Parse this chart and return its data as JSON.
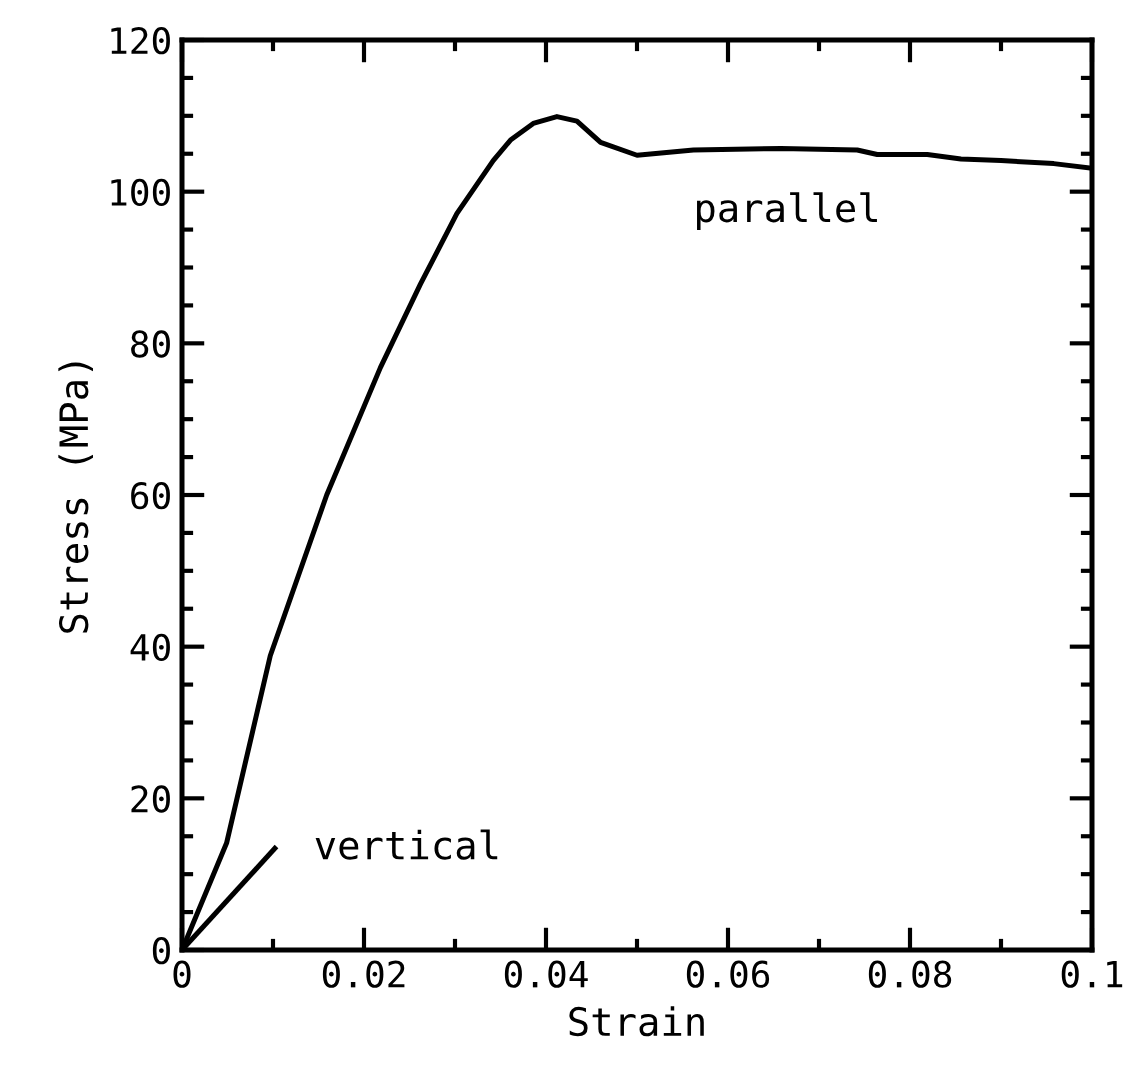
{
  "chart_data": {
    "type": "line",
    "xlabel": "Strain",
    "ylabel": "Stress (MPa)",
    "xlim": [
      0,
      0.1
    ],
    "ylim": [
      0,
      120
    ],
    "xticks": [
      0,
      0.02,
      0.04,
      0.06,
      0.08,
      0.1
    ],
    "yticks": [
      0,
      20,
      40,
      60,
      80,
      100,
      120
    ],
    "grid": false,
    "legend": false,
    "marker": "none",
    "line_style": "solid",
    "series": [
      {
        "name": "parallel",
        "color": "#000000",
        "x": [
          0,
          0.0049,
          0.0097,
          0.0159,
          0.0218,
          0.0262,
          0.0302,
          0.0342,
          0.0361,
          0.0386,
          0.0412,
          0.0434,
          0.046,
          0.05,
          0.0562,
          0.0658,
          0.0742,
          0.0764,
          0.0819,
          0.0856,
          0.09,
          0.0958,
          0.1
        ],
        "values": [
          0,
          14.1,
          38.8,
          60.0,
          76.8,
          87.8,
          97.1,
          104.1,
          106.8,
          109.0,
          109.9,
          109.3,
          106.5,
          104.8,
          105.5,
          105.7,
          105.5,
          104.9,
          104.9,
          104.3,
          104.1,
          103.7,
          103.1
        ]
      },
      {
        "name": "vertical",
        "color": "#000000",
        "x": [
          0,
          0.0102
        ],
        "values": [
          0,
          13.4
        ]
      }
    ]
  }
}
